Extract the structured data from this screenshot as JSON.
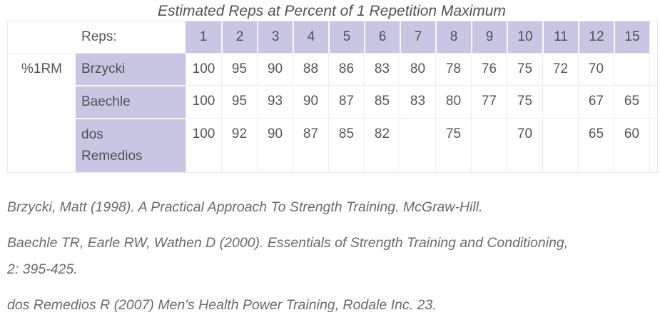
{
  "title": "Estimated Reps at Percent of 1 Repetition Maximum",
  "table": {
    "reps_label": "Reps:",
    "row_axis_label": "%1RM",
    "rep_columns": [
      "1",
      "2",
      "3",
      "4",
      "5",
      "6",
      "7",
      "8",
      "9",
      "10",
      "11",
      "12",
      "15"
    ],
    "rows": [
      {
        "method": "Brzycki",
        "values": [
          "100",
          "95",
          "90",
          "88",
          "86",
          "83",
          "80",
          "78",
          "76",
          "75",
          "72",
          "70",
          ""
        ]
      },
      {
        "method": "Baechle",
        "values": [
          "100",
          "95",
          "93",
          "90",
          "87",
          "85",
          "83",
          "80",
          "77",
          "75",
          "",
          "67",
          "65"
        ]
      },
      {
        "method": "dos Remedios",
        "values": [
          "100",
          "92",
          "90",
          "87",
          "85",
          "82",
          "",
          "75",
          "",
          "70",
          "",
          "65",
          "60"
        ]
      }
    ]
  },
  "citations": [
    "Brzycki, Matt (1998). A Practical Approach To Strength Training. McGraw-Hill.",
    "Baechle TR, Earle RW, Wathen D (2000). Essentials of Strength Training and Conditioning, 2: 395-425.",
    "dos Remedios R (2007) Men's Health Power Training, Rodale Inc. 23."
  ],
  "colors": {
    "header_cell_bg": "#c8c6e2",
    "grid_line": "#ededf2",
    "purple_cell_separator": "#f9f9fc",
    "table_text": "#55565b",
    "citation_text": "#6a6b6f"
  }
}
